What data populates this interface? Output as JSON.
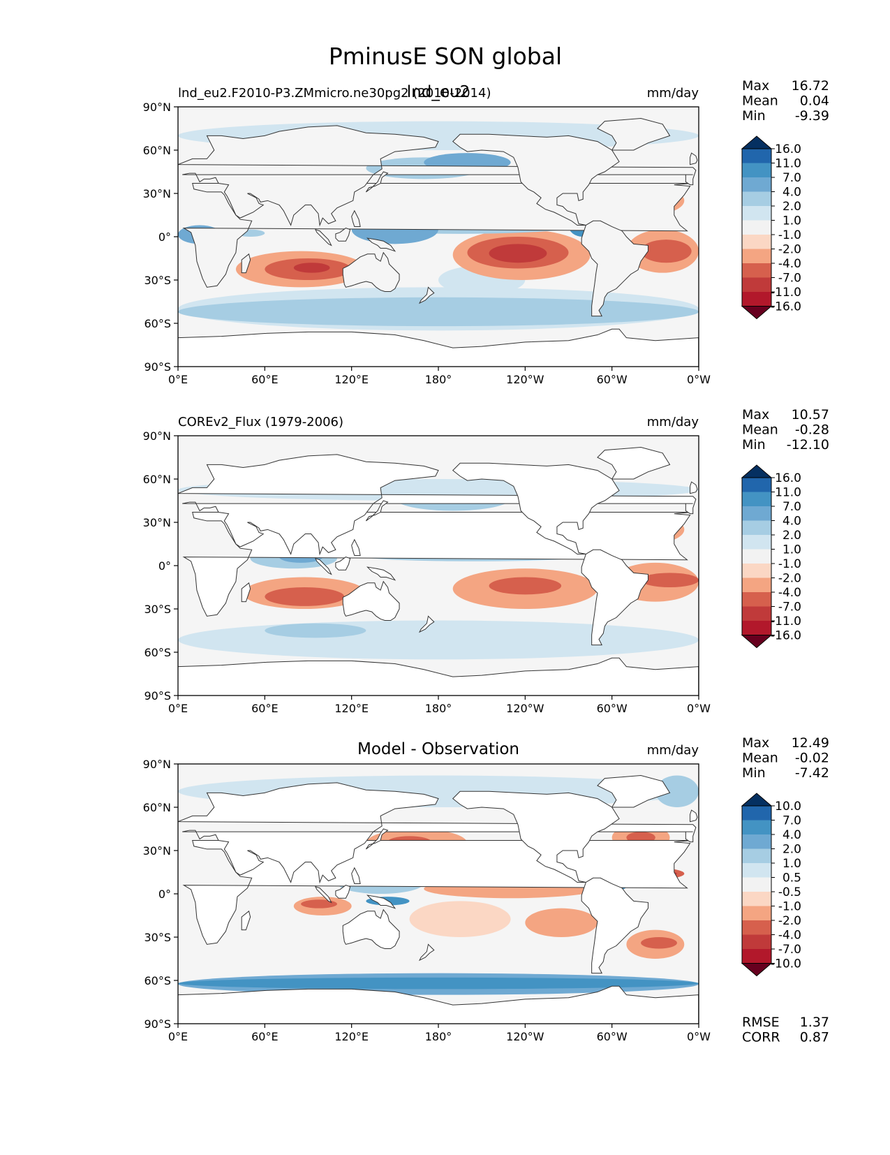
{
  "figure": {
    "title": "PminusE SON global"
  },
  "longitude_ticks": [
    "0°E",
    "60°E",
    "120°E",
    "180°",
    "120°W",
    "60°W",
    "0°W"
  ],
  "latitude_ticks": [
    "90°N",
    "60°N",
    "30°N",
    "0°",
    "30°S",
    "60°S",
    "90°S"
  ],
  "panels": [
    {
      "left_title": "lnd_eu2.F2010-P3.ZMmicro.ne30pg2 (2010-2014)",
      "center_title": "lnd_eu2",
      "units": "mm/day",
      "stats": [
        {
          "label": "Max",
          "value": "16.72"
        },
        {
          "label": "Mean",
          "value": "0.04"
        },
        {
          "label": "Min",
          "value": "-9.39"
        }
      ],
      "colorbar_levels": [
        "16.0",
        "11.0",
        "7.0",
        "4.0",
        "2.0",
        "1.0",
        "-1.0",
        "-2.0",
        "-4.0",
        "-7.0",
        "-11.0",
        "-16.0"
      ],
      "metrics": []
    },
    {
      "left_title": "COREv2_Flux (1979-2006)",
      "center_title": "",
      "units": "mm/day",
      "stats": [
        {
          "label": "Max",
          "value": "10.57"
        },
        {
          "label": "Mean",
          "value": "-0.28"
        },
        {
          "label": "Min",
          "value": "-12.10"
        }
      ],
      "colorbar_levels": [
        "16.0",
        "11.0",
        "7.0",
        "4.0",
        "2.0",
        "1.0",
        "-1.0",
        "-2.0",
        "-4.0",
        "-7.0",
        "-11.0",
        "-16.0"
      ],
      "metrics": []
    },
    {
      "left_title": "",
      "center_title": "Model - Observation",
      "units": "mm/day",
      "stats": [
        {
          "label": "Max",
          "value": "12.49"
        },
        {
          "label": "Mean",
          "value": "-0.02"
        },
        {
          "label": "Min",
          "value": "-7.42"
        }
      ],
      "colorbar_levels": [
        "10.0",
        "7.0",
        "4.0",
        "2.0",
        "1.0",
        "0.5",
        "-0.5",
        "-1.0",
        "-2.0",
        "-4.0",
        "-7.0",
        "-10.0"
      ],
      "metrics": [
        {
          "label": "RMSE",
          "value": "1.37"
        },
        {
          "label": "CORR",
          "value": "0.87"
        }
      ]
    }
  ],
  "colors": {
    "colorbar": [
      "#053061",
      "#2166ac",
      "#4393c3",
      "#6fa9d2",
      "#a6cde3",
      "#d1e5f0",
      "#f2f2f2",
      "#fbd7c4",
      "#f4a582",
      "#d6604d",
      "#c03a3a",
      "#b2182b",
      "#67001f"
    ],
    "ocean_neutral": "#f5f5f5",
    "land": "#ffffff",
    "coast": "#333333"
  }
}
